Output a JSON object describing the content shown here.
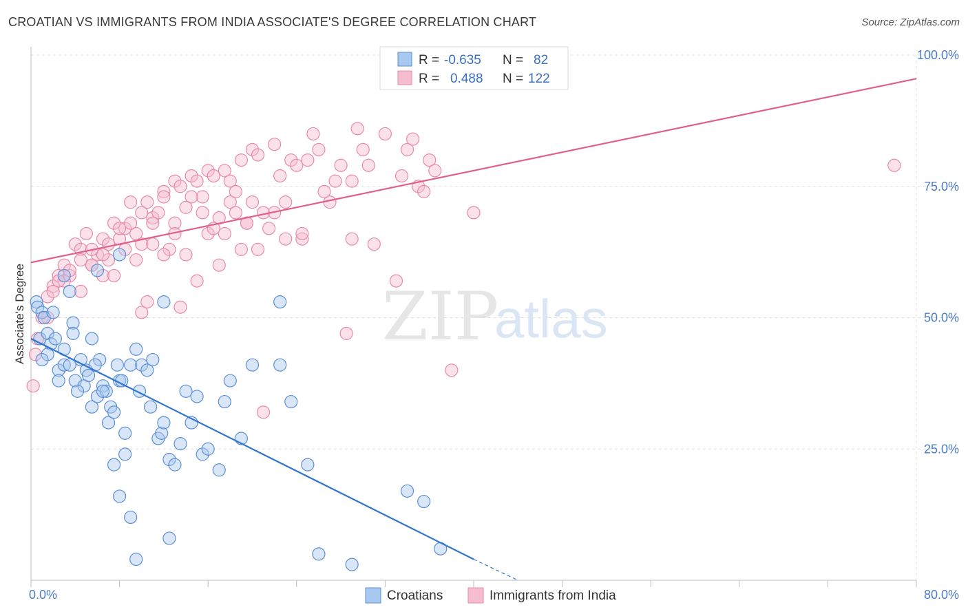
{
  "title": "CROATIAN VS IMMIGRANTS FROM INDIA ASSOCIATE'S DEGREE CORRELATION CHART",
  "source": "Source: ZipAtlas.com",
  "watermark": {
    "zip": "ZIP",
    "atlas": "atlas"
  },
  "colors": {
    "croatian_fill": "#a9c8f0",
    "croatian_stroke": "#5b8fd6",
    "croatian_line": "#2f74d0",
    "india_fill": "#f6bcd0",
    "india_stroke": "#e88aa8",
    "india_line": "#e0608a",
    "tick": "#4a7cc7"
  },
  "legend": {
    "r_label": "R =",
    "n_label": "N =",
    "rows": [
      {
        "r": "-0.635",
        "n": "82"
      },
      {
        "r": "0.488",
        "n": "122"
      }
    ]
  },
  "chart_data": {
    "type": "scatter",
    "xlabel": "",
    "ylabel": "Associate's Degree",
    "xlim": [
      0,
      80
    ],
    "ylim": [
      0,
      100
    ],
    "x_tick_labels": [
      "0.0%",
      "80.0%"
    ],
    "y_tick_labels": [
      "25.0%",
      "50.0%",
      "75.0%",
      "100.0%"
    ],
    "y_tick_values": [
      25,
      50,
      75,
      100
    ],
    "grid": true,
    "legend_position": "bottom",
    "series": [
      {
        "name": "Croatians",
        "trend": {
          "x": [
            0,
            40
          ],
          "y": [
            46,
            4
          ],
          "dashed_to": [
            44,
            0
          ]
        },
        "points": [
          [
            0.5,
            53
          ],
          [
            0.6,
            52
          ],
          [
            1.0,
            51
          ],
          [
            1.2,
            50
          ],
          [
            2.0,
            51
          ],
          [
            3.5,
            55
          ],
          [
            3.8,
            49
          ],
          [
            0.8,
            46
          ],
          [
            1.5,
            47
          ],
          [
            1.8,
            45
          ],
          [
            2.2,
            46
          ],
          [
            3.0,
            44
          ],
          [
            3.8,
            47
          ],
          [
            5.5,
            46
          ],
          [
            1.5,
            43
          ],
          [
            2.5,
            40
          ],
          [
            3.0,
            41
          ],
          [
            3.5,
            41
          ],
          [
            4.0,
            38
          ],
          [
            4.5,
            42
          ],
          [
            4.8,
            37
          ],
          [
            5.0,
            40
          ],
          [
            5.2,
            39
          ],
          [
            5.5,
            33
          ],
          [
            6.0,
            35
          ],
          [
            6.2,
            42
          ],
          [
            6.5,
            37
          ],
          [
            6.8,
            36
          ],
          [
            7.0,
            30
          ],
          [
            7.2,
            33
          ],
          [
            7.5,
            32
          ],
          [
            8.0,
            38
          ],
          [
            8.2,
            38
          ],
          [
            8.5,
            28
          ],
          [
            9.0,
            41
          ],
          [
            9.5,
            44
          ],
          [
            9.8,
            36
          ],
          [
            10.0,
            41
          ],
          [
            10.5,
            40
          ],
          [
            10.8,
            33
          ],
          [
            11.0,
            42
          ],
          [
            11.5,
            27
          ],
          [
            12.0,
            53
          ],
          [
            12.5,
            23
          ],
          [
            11.8,
            28
          ],
          [
            12.0,
            30
          ],
          [
            13.0,
            22
          ],
          [
            13.5,
            26
          ],
          [
            14.0,
            36
          ],
          [
            14.5,
            30
          ],
          [
            15.0,
            35
          ],
          [
            15.5,
            24
          ],
          [
            16.0,
            25
          ],
          [
            17.0,
            21
          ],
          [
            18.0,
            38
          ],
          [
            17.5,
            34
          ],
          [
            19.0,
            27
          ],
          [
            20.0,
            41
          ],
          [
            7.5,
            22
          ],
          [
            8.5,
            24
          ],
          [
            8.0,
            16
          ],
          [
            9.0,
            12
          ],
          [
            9.5,
            4
          ],
          [
            12.5,
            8
          ],
          [
            6.0,
            59
          ],
          [
            8.0,
            62
          ],
          [
            22.5,
            53
          ],
          [
            22.5,
            41
          ],
          [
            23.5,
            34
          ],
          [
            25.0,
            22
          ],
          [
            26.0,
            5
          ],
          [
            29.0,
            3
          ],
          [
            34.0,
            17
          ],
          [
            35.5,
            15
          ],
          [
            37.0,
            6
          ],
          [
            1.0,
            42
          ],
          [
            2.5,
            38
          ],
          [
            4.2,
            36
          ],
          [
            5.8,
            41
          ],
          [
            7.8,
            41
          ],
          [
            3.0,
            58
          ],
          [
            6.5,
            36
          ]
        ]
      },
      {
        "name": "Immigrants from India",
        "trend": {
          "x": [
            0,
            80
          ],
          "y": [
            60.5,
            95.5
          ]
        },
        "points": [
          [
            0.2,
            37
          ],
          [
            0.4,
            43
          ],
          [
            0.6,
            46
          ],
          [
            1.0,
            50
          ],
          [
            1.5,
            54
          ],
          [
            2.0,
            56
          ],
          [
            2.5,
            58
          ],
          [
            3.0,
            60
          ],
          [
            3.5,
            58
          ],
          [
            4.0,
            64
          ],
          [
            4.5,
            63
          ],
          [
            5.0,
            66
          ],
          [
            5.5,
            60
          ],
          [
            6.0,
            62
          ],
          [
            6.5,
            65
          ],
          [
            7.0,
            64
          ],
          [
            7.5,
            68
          ],
          [
            8.0,
            65
          ],
          [
            8.5,
            67
          ],
          [
            9.0,
            72
          ],
          [
            9.5,
            66
          ],
          [
            10.0,
            64
          ],
          [
            10.5,
            72
          ],
          [
            11.0,
            69
          ],
          [
            11.5,
            70
          ],
          [
            12.0,
            74
          ],
          [
            12.5,
            63
          ],
          [
            13.0,
            76
          ],
          [
            13.5,
            75
          ],
          [
            14.0,
            71
          ],
          [
            14.5,
            77
          ],
          [
            15.0,
            76
          ],
          [
            15.5,
            73
          ],
          [
            16.0,
            78
          ],
          [
            16.5,
            77
          ],
          [
            17.0,
            69
          ],
          [
            17.5,
            78
          ],
          [
            18.0,
            76
          ],
          [
            18.5,
            74
          ],
          [
            19.0,
            80
          ],
          [
            19.5,
            68
          ],
          [
            20.0,
            82
          ],
          [
            20.5,
            81
          ],
          [
            21.0,
            70
          ],
          [
            21.5,
            67
          ],
          [
            22.0,
            83
          ],
          [
            22.5,
            77
          ],
          [
            23.0,
            72
          ],
          [
            23.5,
            80
          ],
          [
            24.0,
            79
          ],
          [
            24.5,
            65
          ],
          [
            25.0,
            80
          ],
          [
            25.5,
            85
          ],
          [
            26.0,
            82
          ],
          [
            27.0,
            72
          ],
          [
            27.5,
            76
          ],
          [
            28.0,
            79
          ],
          [
            28.5,
            47
          ],
          [
            29.0,
            76
          ],
          [
            29.5,
            86
          ],
          [
            30.0,
            82
          ],
          [
            30.5,
            79
          ],
          [
            31.0,
            64
          ],
          [
            32.0,
            85
          ],
          [
            33.0,
            57
          ],
          [
            33.5,
            77
          ],
          [
            34.0,
            82
          ],
          [
            34.5,
            84
          ],
          [
            35.0,
            75
          ],
          [
            35.5,
            74
          ],
          [
            36.0,
            80
          ],
          [
            36.5,
            78
          ],
          [
            38.0,
            40
          ],
          [
            40.0,
            70
          ],
          [
            2.0,
            55
          ],
          [
            3.0,
            57
          ],
          [
            4.5,
            61
          ],
          [
            5.5,
            63
          ],
          [
            6.5,
            58
          ],
          [
            7.0,
            61
          ],
          [
            8.0,
            67
          ],
          [
            9.0,
            68
          ],
          [
            10.0,
            70
          ],
          [
            11.0,
            64
          ],
          [
            12.0,
            62
          ],
          [
            13.0,
            68
          ],
          [
            14.0,
            62
          ],
          [
            15.0,
            57
          ],
          [
            16.0,
            66
          ],
          [
            17.0,
            60
          ],
          [
            18.0,
            72
          ],
          [
            19.0,
            63
          ],
          [
            20.0,
            72
          ],
          [
            10.0,
            51
          ],
          [
            10.5,
            53
          ],
          [
            13.5,
            52
          ],
          [
            21.0,
            32
          ],
          [
            1.5,
            50
          ],
          [
            2.5,
            57
          ],
          [
            3.5,
            59
          ],
          [
            4.5,
            55
          ],
          [
            5.5,
            60
          ],
          [
            6.5,
            62
          ],
          [
            7.5,
            58
          ],
          [
            8.5,
            63
          ],
          [
            9.5,
            61
          ],
          [
            11.0,
            68
          ],
          [
            12.0,
            73
          ],
          [
            13.0,
            66
          ],
          [
            14.5,
            73
          ],
          [
            15.5,
            70
          ],
          [
            16.5,
            67
          ],
          [
            18.5,
            70
          ],
          [
            19.5,
            68
          ],
          [
            20.5,
            63
          ],
          [
            23.0,
            65
          ],
          [
            24.5,
            66
          ],
          [
            26.5,
            74
          ],
          [
            29.0,
            65
          ],
          [
            78.0,
            79
          ],
          [
            22.0,
            70
          ],
          [
            17.5,
            66
          ]
        ]
      }
    ]
  },
  "bottom_legend": [
    {
      "label": "Croatians"
    },
    {
      "label": "Immigrants from India"
    }
  ]
}
